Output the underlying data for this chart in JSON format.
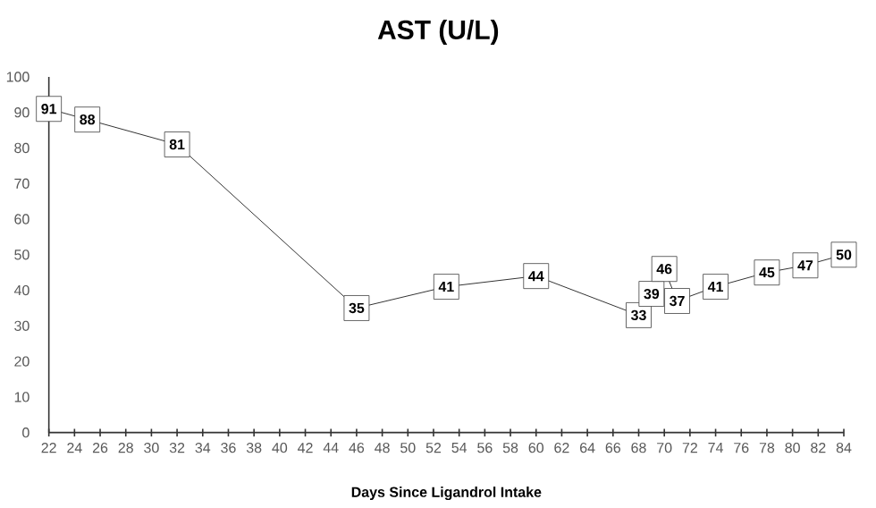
{
  "chart_data": {
    "type": "line",
    "title": "AST (U/L)",
    "xlabel": "Days Since Ligandrol Intake",
    "x": [
      22,
      25,
      32,
      46,
      53,
      60,
      68,
      69,
      70,
      71,
      74,
      78,
      81,
      84
    ],
    "series": [
      {
        "color": "#000000",
        "values": [
          91,
          88,
          81,
          35,
          41,
          44,
          33,
          39,
          46,
          37,
          41,
          45,
          47,
          50
        ]
      }
    ],
    "xlim": [
      22,
      84
    ],
    "ylim": [
      0,
      100
    ],
    "xticks": [
      22,
      24,
      26,
      28,
      30,
      32,
      34,
      36,
      38,
      40,
      42,
      44,
      46,
      48,
      50,
      52,
      54,
      56,
      58,
      60,
      62,
      64,
      66,
      68,
      70,
      72,
      74,
      76,
      78,
      80,
      82,
      84
    ],
    "yticks": [
      0,
      10,
      20,
      30,
      40,
      50,
      60,
      70,
      80,
      90,
      100
    ],
    "data_labels": true,
    "marker": "square",
    "line_style": "solid",
    "grid": false
  }
}
